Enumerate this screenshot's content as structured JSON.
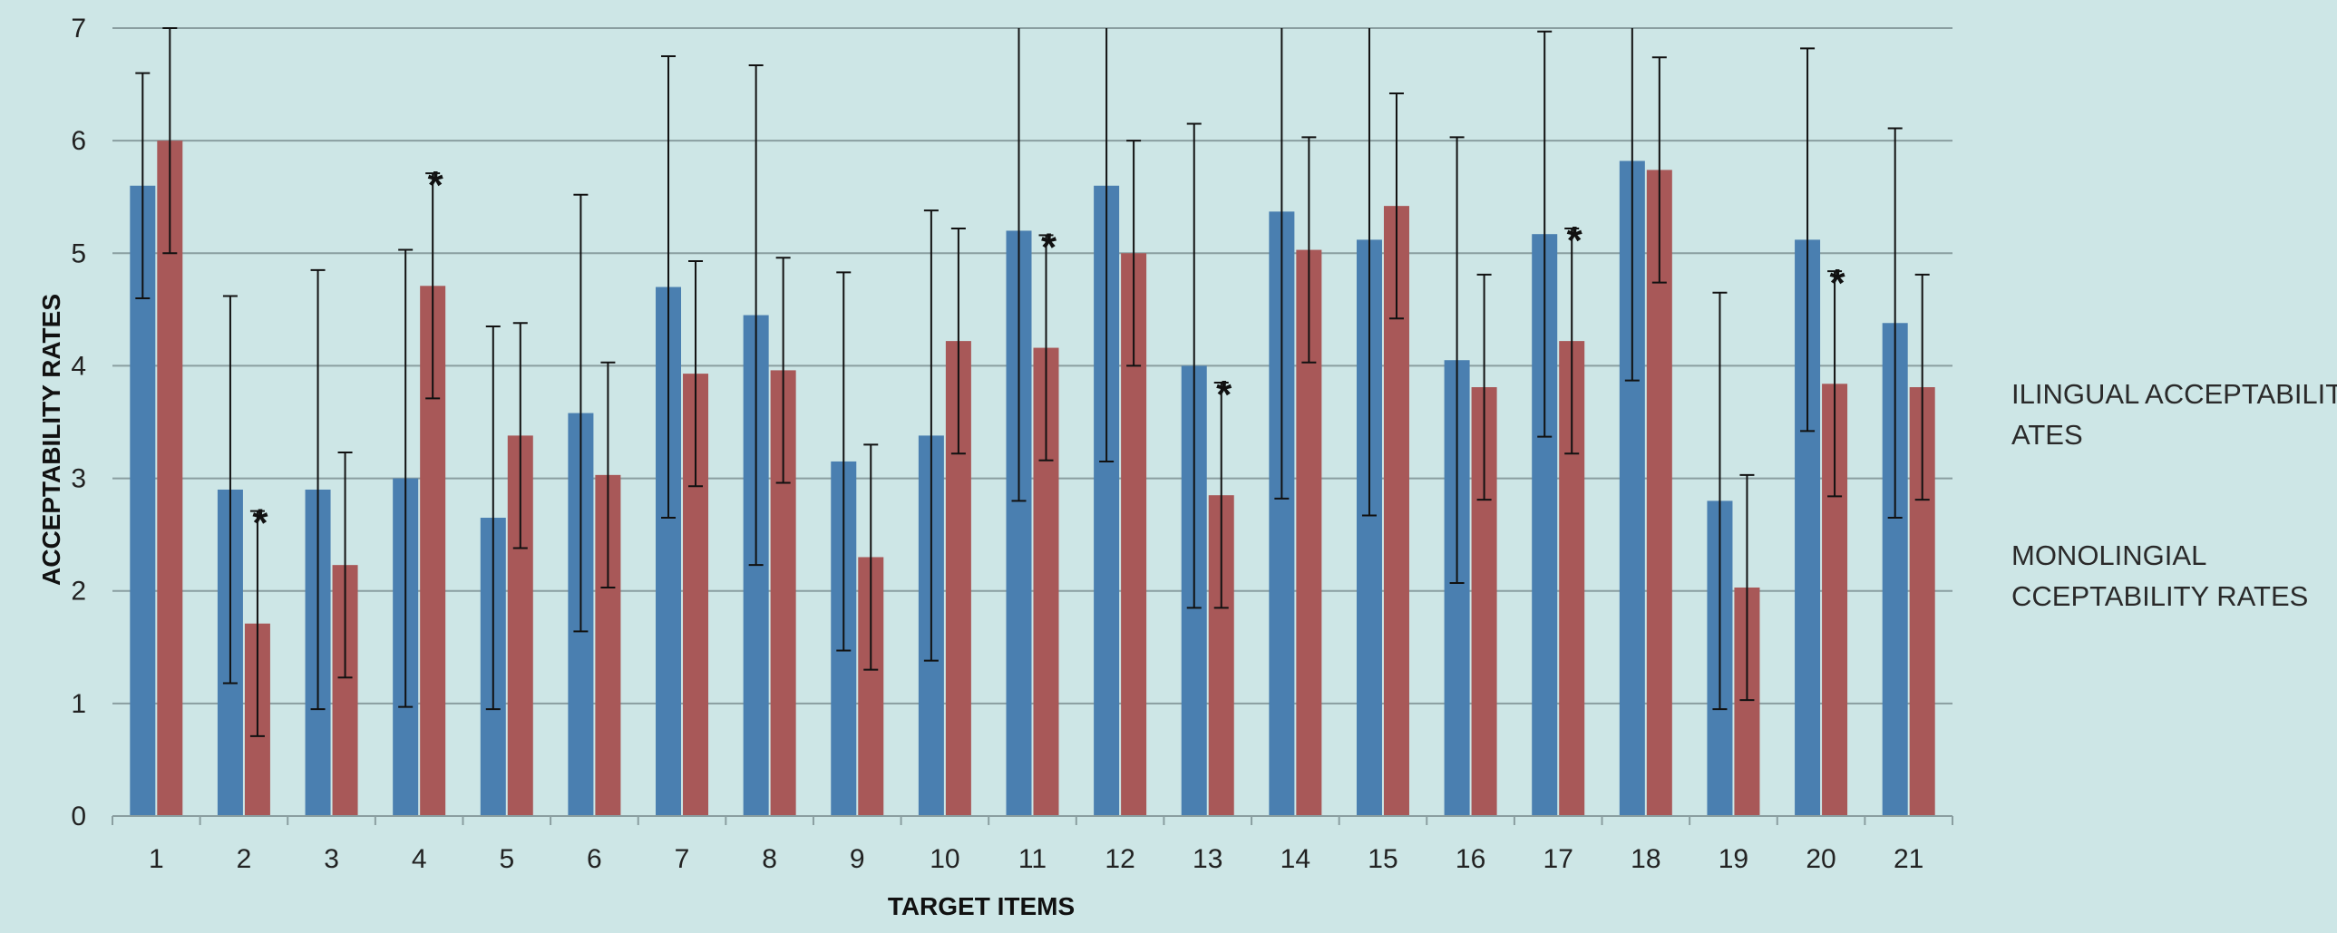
{
  "chart_data": {
    "type": "bar",
    "title": "",
    "xlabel": "TARGET ITEMS",
    "ylabel": "ACCEPTABILITY  RATES",
    "ylim": [
      0,
      7
    ],
    "yticks": [
      0,
      1,
      2,
      3,
      4,
      5,
      6,
      7
    ],
    "grid": true,
    "legend_position": "right",
    "categories": [
      "1",
      "2",
      "3",
      "4",
      "5",
      "6",
      "7",
      "8",
      "9",
      "10",
      "11",
      "12",
      "13",
      "14",
      "15",
      "16",
      "17",
      "18",
      "19",
      "20",
      "21"
    ],
    "series": [
      {
        "name": "ILINGUAL ACCEPTABILITY RATES",
        "legend_lines": [
          "ILINGUAL ACCEPTABILITY",
          "ATES"
        ],
        "color": "#4a7fb0",
        "values": [
          5.6,
          2.9,
          2.9,
          3.0,
          2.65,
          3.58,
          4.7,
          4.45,
          3.15,
          3.38,
          5.2,
          5.6,
          4.0,
          5.37,
          5.12,
          4.05,
          5.17,
          5.82,
          2.8,
          5.12,
          4.38
        ],
        "error": [
          1.0,
          1.72,
          1.95,
          2.03,
          1.7,
          1.94,
          2.05,
          2.22,
          1.68,
          2.0,
          2.4,
          2.45,
          2.15,
          2.55,
          2.45,
          1.98,
          1.8,
          1.95,
          1.85,
          1.7,
          1.73
        ]
      },
      {
        "name": "MONOLINGIAL ACCEPTABILITY RATES",
        "legend_lines": [
          "MONOLINGIAL",
          "CCEPTABILITY RATES"
        ],
        "color": "#a85858",
        "values": [
          6.0,
          1.71,
          2.23,
          4.71,
          3.38,
          3.03,
          3.93,
          3.96,
          2.3,
          4.22,
          4.16,
          5.0,
          2.85,
          5.03,
          5.42,
          3.81,
          4.22,
          5.74,
          2.03,
          3.84,
          3.81
        ],
        "error": [
          1.0,
          1.0,
          1.0,
          1.0,
          1.0,
          1.0,
          1.0,
          1.0,
          1.0,
          1.0,
          1.0,
          1.0,
          1.0,
          1.0,
          1.0,
          1.0,
          1.0,
          1.0,
          1.0,
          1.0,
          1.0
        ]
      }
    ],
    "significance_marker": "*",
    "significant_items": [
      "2",
      "4",
      "11",
      "13",
      "17",
      "20"
    ]
  }
}
